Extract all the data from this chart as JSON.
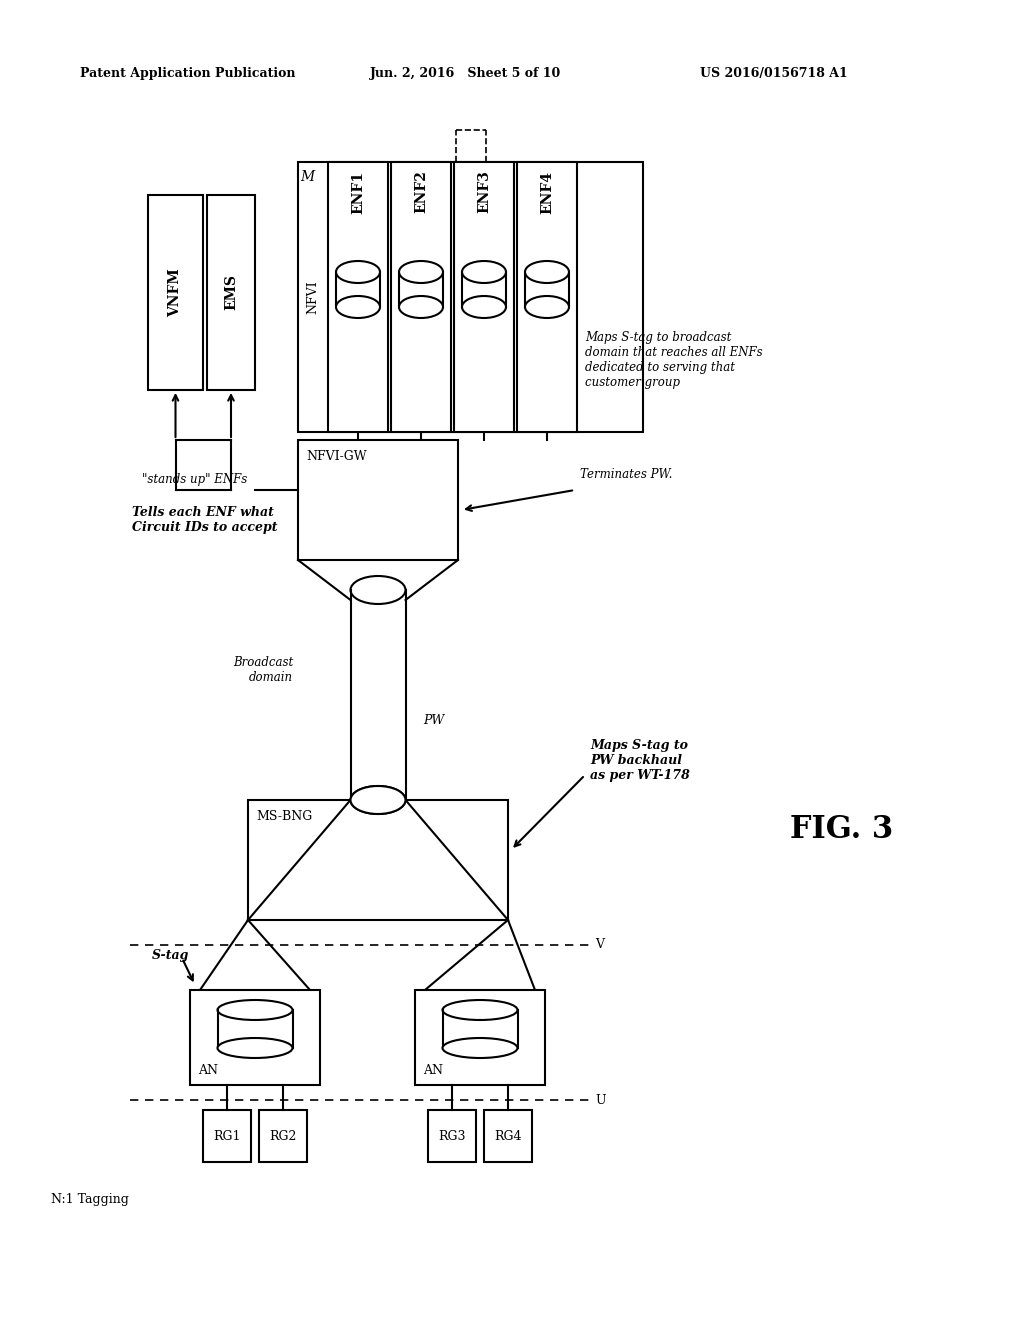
{
  "header_left": "Patent Application Publication",
  "header_mid": "Jun. 2, 2016   Sheet 5 of 10",
  "header_right": "US 2016/0156718 A1",
  "bg_color": "#ffffff",
  "lc": "#000000",
  "lw": 1.5,
  "fig3_label": "FIG. 3",
  "n1_tagging": "N:1 Tagging",
  "stands_up": "\"stands up\" ENFs",
  "tells_enf": "Tells each ENF what\nCircuit IDs to accept",
  "terminates_pw": "Terminates PW.",
  "maps_stag_bcast": "Maps S-tag to broadcast\ndomain that reaches all ENFs\ndedicated to serving that\ncustomer group",
  "maps_stag_pw": "Maps S-tag to\nPW backhaul\nas per WT-178",
  "broadcast_domain": "Broadcast\ndomain",
  "pw_label": "PW",
  "stag_label": "S-tag",
  "u_label": "U",
  "v_label": "V",
  "m_label": "M",
  "enf_names": [
    "ENF1",
    "ENF2",
    "ENF3",
    "ENF4"
  ],
  "rg_labels": [
    "RG1",
    "RG2",
    "RG3",
    "RG4"
  ]
}
